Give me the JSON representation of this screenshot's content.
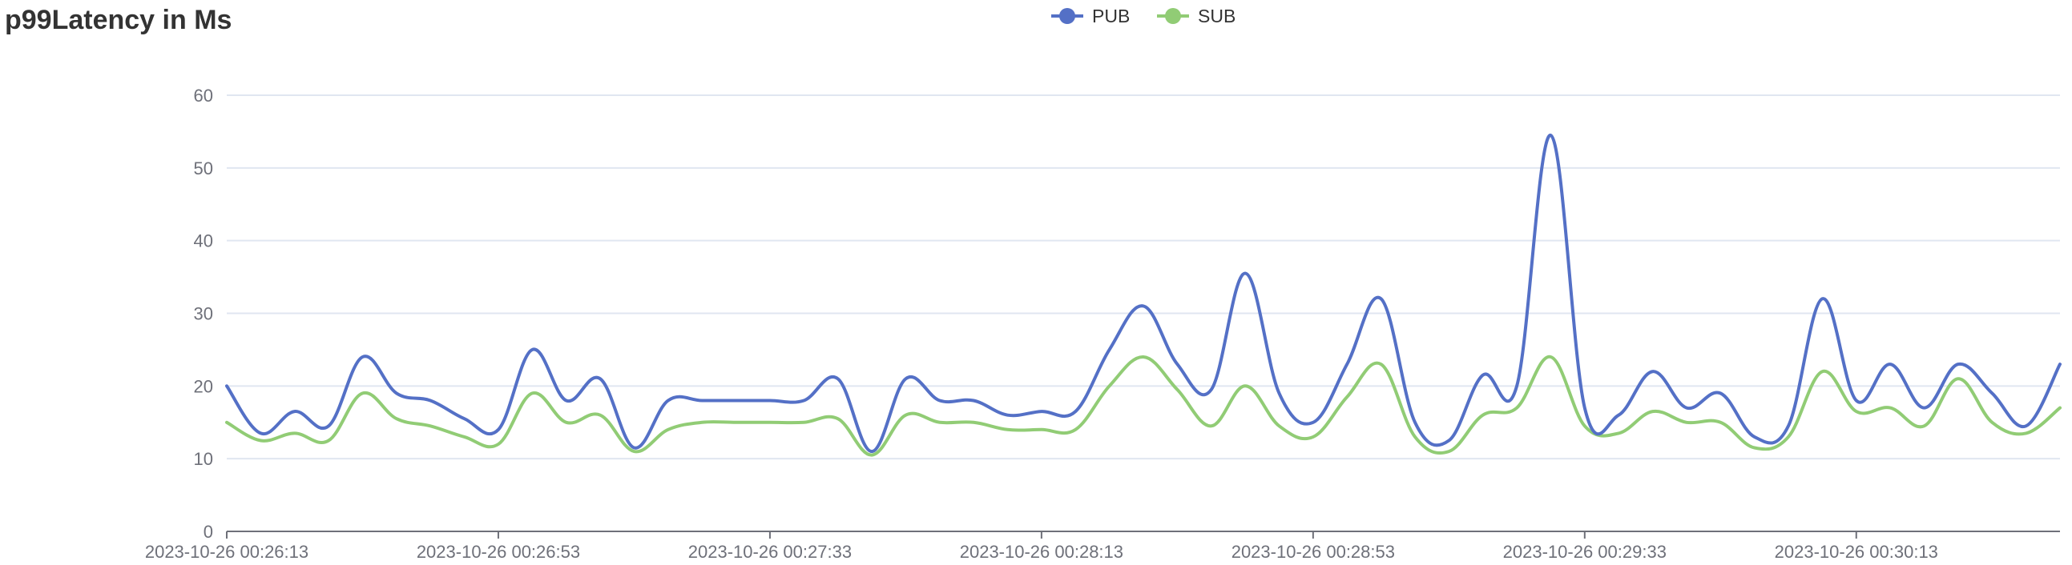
{
  "chart_data": {
    "type": "line",
    "title": "p99Latency in Ms",
    "ylim": [
      0,
      60
    ],
    "y_ticks": [
      0,
      10,
      20,
      30,
      40,
      50,
      60
    ],
    "x_tick_labels": [
      "2023-10-26 00:26:13",
      "2023-10-26 00:26:53",
      "2023-10-26 00:27:33",
      "2023-10-26 00:28:13",
      "2023-10-26 00:28:53",
      "2023-10-26 00:29:33",
      "2023-10-26 00:30:13"
    ],
    "x_tick_indices": [
      0,
      8,
      16,
      24,
      32,
      40,
      48
    ],
    "grid": true,
    "legend_position": "top-center",
    "series": [
      {
        "name": "PUB",
        "color": "#5470c6",
        "values": [
          20,
          13.5,
          16.5,
          14.5,
          24,
          19,
          18,
          15.5,
          14,
          25,
          18,
          21,
          11.5,
          18,
          18,
          18,
          18,
          18,
          21,
          11,
          21,
          18,
          18,
          16,
          16.5,
          16.5,
          25,
          31,
          23,
          19.5,
          35.5,
          19,
          15,
          23,
          32,
          15,
          12.5,
          21.5,
          20,
          54.5,
          17,
          16,
          22,
          17,
          19,
          13,
          14.5,
          32,
          18,
          23,
          17,
          23,
          19,
          14.5,
          23
        ]
      },
      {
        "name": "SUB",
        "color": "#91cc75",
        "values": [
          15,
          12.5,
          13.5,
          12.5,
          19,
          15.5,
          14.5,
          13,
          12,
          19,
          15,
          16,
          11,
          14,
          15,
          15,
          15,
          15,
          15.5,
          10.5,
          16,
          15,
          15,
          14,
          14,
          14,
          20,
          24,
          19.5,
          14.5,
          20,
          14.5,
          13,
          18.5,
          23,
          13,
          11,
          16,
          17,
          24,
          14.5,
          13.5,
          16.5,
          15,
          15,
          11.5,
          13,
          22,
          16.5,
          17,
          14.5,
          21,
          15,
          13.5,
          17
        ]
      }
    ]
  }
}
